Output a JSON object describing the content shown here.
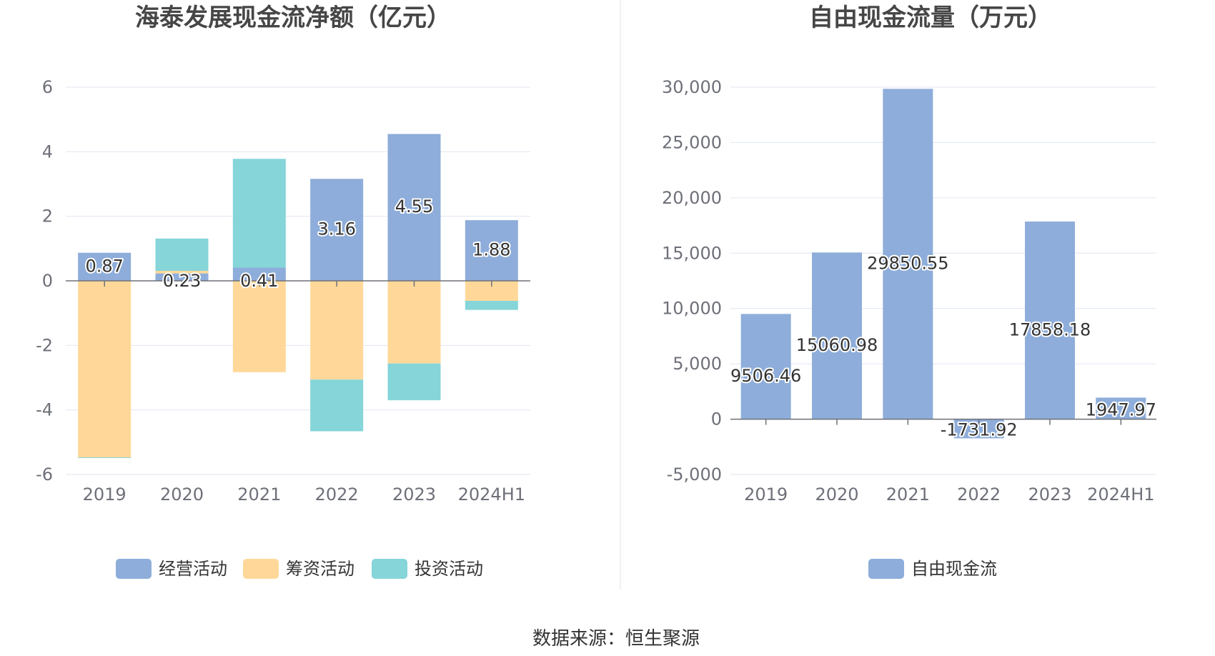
{
  "colors": {
    "operating": "#8eadda",
    "financing": "#ffd899",
    "investing": "#85d5d9",
    "fcf": "#8eadda"
  },
  "source": "数据来源：恒生聚源",
  "chart_data": [
    {
      "type": "bar",
      "stacked": true,
      "title": "海泰发展现金流净额（亿元）",
      "categories": [
        "2019",
        "2020",
        "2021",
        "2022",
        "2023",
        "2024H1"
      ],
      "ylim": [
        -6,
        6
      ],
      "yticks": [
        "6",
        "4",
        "2",
        "0",
        "-2",
        "-4",
        "-6"
      ],
      "grid": true,
      "legend_position": "bottom",
      "series": [
        {
          "name": "经营活动",
          "values": [
            0.87,
            0.23,
            0.41,
            3.16,
            4.55,
            1.88
          ],
          "labels": [
            "0.87",
            "0.23",
            "0.41",
            "3.16",
            "4.55",
            "1.88"
          ]
        },
        {
          "name": "筹资活动",
          "values": [
            -5.47,
            0.08,
            -2.83,
            -3.06,
            -2.56,
            -0.62
          ]
        },
        {
          "name": "投资活动",
          "values": [
            -0.02,
            1.0,
            3.37,
            -1.6,
            -1.14,
            -0.28
          ]
        }
      ]
    },
    {
      "type": "bar",
      "title": "自由现金流量（万元）",
      "categories": [
        "2019",
        "2020",
        "2021",
        "2022",
        "2023",
        "2024H1"
      ],
      "ylim": [
        -5000,
        30000
      ],
      "yticks": [
        "30,000",
        "25,000",
        "20,000",
        "15,000",
        "10,000",
        "5,000",
        "0",
        "-5,000"
      ],
      "grid": true,
      "legend_position": "bottom",
      "series": [
        {
          "name": "自由现金流",
          "values": [
            9506.46,
            15060.98,
            29850.55,
            -1731.92,
            17858.18,
            1947.97
          ],
          "labels": [
            "9506.46",
            "15060.98",
            "29850.55",
            "-1731.92",
            "17858.18",
            "1947.97"
          ]
        }
      ]
    }
  ]
}
